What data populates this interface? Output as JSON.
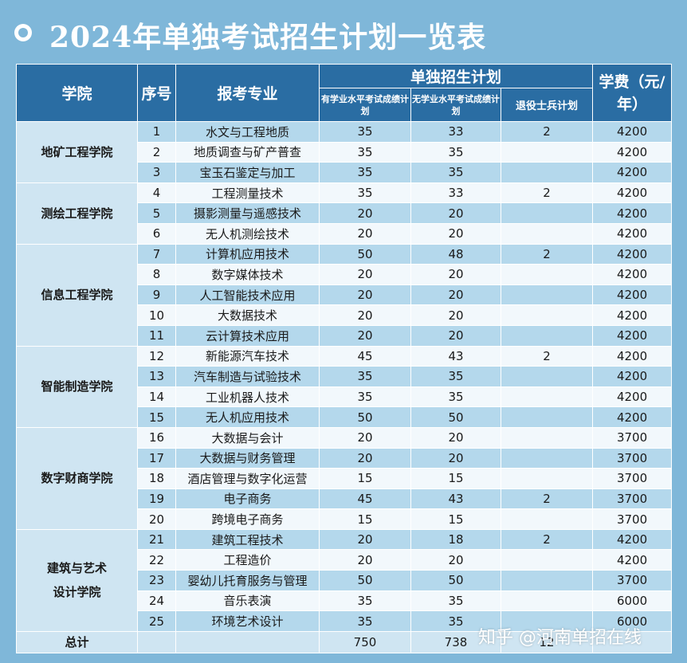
{
  "title": "2024年单独考试招生计划一览表",
  "header": {
    "college": "学院",
    "index": "序号",
    "major": "报考专业",
    "plan_group": "单独招生计划",
    "plan_with": "有学业水平考试成绩计划",
    "plan_without": "无学业水平考试成绩计划",
    "plan_veteran": "退役士兵计划",
    "fee": "学费（元/年）"
  },
  "colleges": [
    {
      "name": "地矿工程学院",
      "rows": [
        {
          "no": "1",
          "major": "水文与工程地质",
          "with": "35",
          "without": "33",
          "veteran": "2",
          "fee": "4200"
        },
        {
          "no": "2",
          "major": "地质调查与矿产普查",
          "with": "35",
          "without": "35",
          "veteran": "",
          "fee": "4200"
        },
        {
          "no": "3",
          "major": "宝玉石鉴定与加工",
          "with": "35",
          "without": "35",
          "veteran": "",
          "fee": "4200"
        }
      ]
    },
    {
      "name": "测绘工程学院",
      "rows": [
        {
          "no": "4",
          "major": "工程测量技术",
          "with": "35",
          "without": "33",
          "veteran": "2",
          "fee": "4200"
        },
        {
          "no": "5",
          "major": "摄影测量与遥感技术",
          "with": "20",
          "without": "20",
          "veteran": "",
          "fee": "4200"
        },
        {
          "no": "6",
          "major": "无人机测绘技术",
          "with": "20",
          "without": "20",
          "veteran": "",
          "fee": "4200"
        }
      ]
    },
    {
      "name": "信息工程学院",
      "rows": [
        {
          "no": "7",
          "major": "计算机应用技术",
          "with": "50",
          "without": "48",
          "veteran": "2",
          "fee": "4200"
        },
        {
          "no": "8",
          "major": "数字媒体技术",
          "with": "20",
          "without": "20",
          "veteran": "",
          "fee": "4200"
        },
        {
          "no": "9",
          "major": "人工智能技术应用",
          "with": "20",
          "without": "20",
          "veteran": "",
          "fee": "4200"
        },
        {
          "no": "10",
          "major": "大数据技术",
          "with": "20",
          "without": "20",
          "veteran": "",
          "fee": "4200"
        },
        {
          "no": "11",
          "major": "云计算技术应用",
          "with": "20",
          "without": "20",
          "veteran": "",
          "fee": "4200"
        }
      ]
    },
    {
      "name": "智能制造学院",
      "rows": [
        {
          "no": "12",
          "major": "新能源汽车技术",
          "with": "45",
          "without": "43",
          "veteran": "2",
          "fee": "4200"
        },
        {
          "no": "13",
          "major": "汽车制造与试验技术",
          "with": "35",
          "without": "35",
          "veteran": "",
          "fee": "4200"
        },
        {
          "no": "14",
          "major": "工业机器人技术",
          "with": "35",
          "without": "35",
          "veteran": "",
          "fee": "4200"
        },
        {
          "no": "15",
          "major": "无人机应用技术",
          "with": "50",
          "without": "50",
          "veteran": "",
          "fee": "4200"
        }
      ]
    },
    {
      "name": "数字财商学院",
      "rows": [
        {
          "no": "16",
          "major": "大数据与会计",
          "with": "20",
          "without": "20",
          "veteran": "",
          "fee": "3700"
        },
        {
          "no": "17",
          "major": "大数据与财务管理",
          "with": "20",
          "without": "20",
          "veteran": "",
          "fee": "3700"
        },
        {
          "no": "18",
          "major": "酒店管理与数字化运营",
          "with": "15",
          "without": "15",
          "veteran": "",
          "fee": "3700"
        },
        {
          "no": "19",
          "major": "电子商务",
          "with": "45",
          "without": "43",
          "veteran": "2",
          "fee": "3700"
        },
        {
          "no": "20",
          "major": "跨境电子商务",
          "with": "15",
          "without": "15",
          "veteran": "",
          "fee": "3700"
        }
      ]
    },
    {
      "name": "建筑与艺术设计学院",
      "rows": [
        {
          "no": "21",
          "major": "建筑工程技术",
          "with": "20",
          "without": "18",
          "veteran": "2",
          "fee": "4200"
        },
        {
          "no": "22",
          "major": "工程造价",
          "with": "20",
          "without": "20",
          "veteran": "",
          "fee": "4200"
        },
        {
          "no": "23",
          "major": "婴幼儿托育服务与管理",
          "with": "50",
          "without": "50",
          "veteran": "",
          "fee": "3700"
        },
        {
          "no": "24",
          "major": "音乐表演",
          "with": "35",
          "without": "35",
          "veteran": "",
          "fee": "6000"
        },
        {
          "no": "25",
          "major": "环境艺术设计",
          "with": "35",
          "without": "35",
          "veteran": "",
          "fee": "6000"
        }
      ]
    }
  ],
  "total": {
    "label": "总计",
    "with": "750",
    "without": "738",
    "veteran": "12"
  },
  "watermark": "知乎 @河南单招在线"
}
